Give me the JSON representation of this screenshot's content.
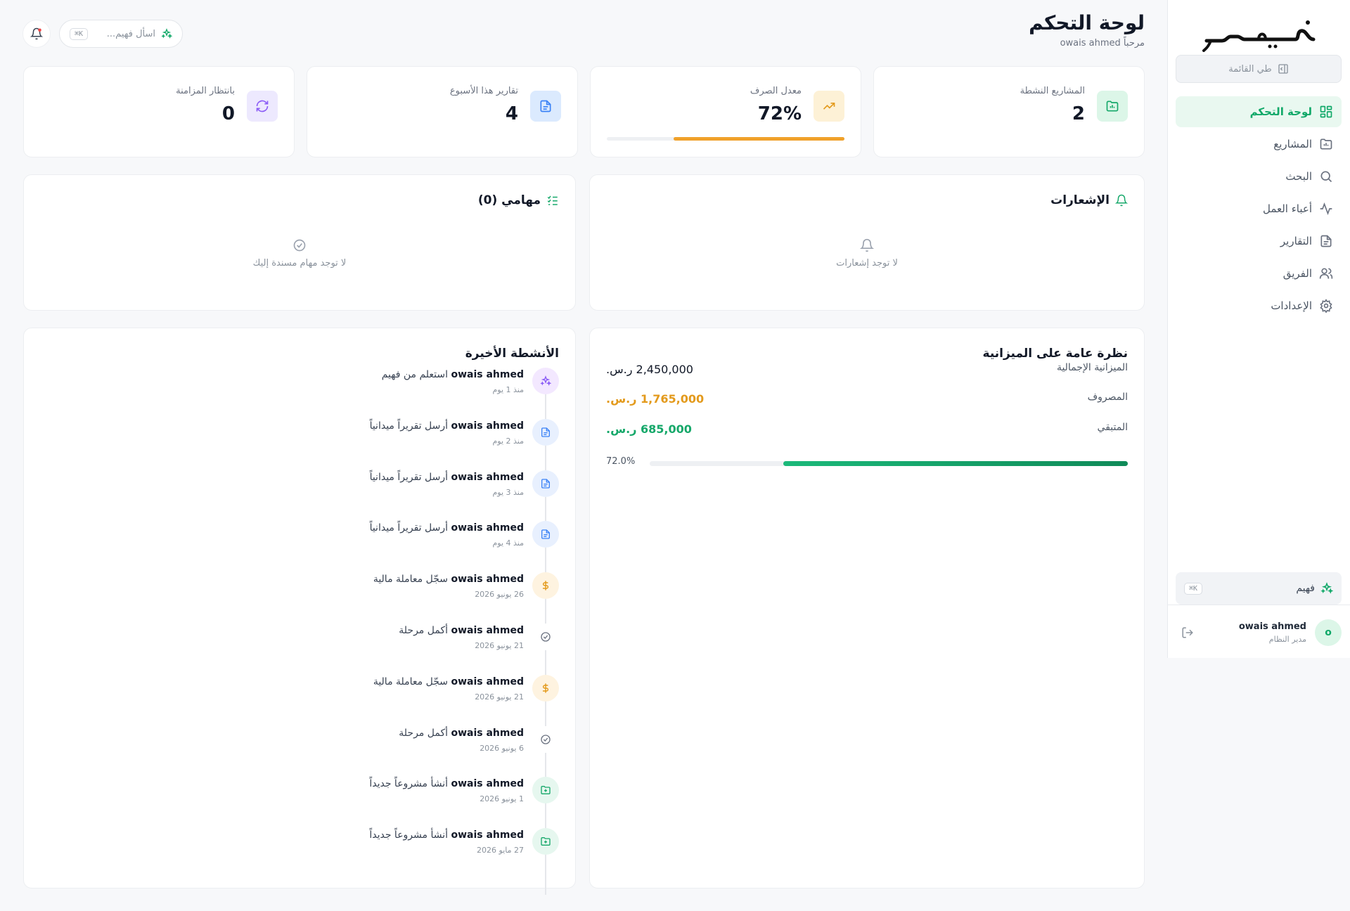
{
  "sidebar": {
    "collapse_label": "طي القائمة",
    "items": [
      {
        "label": "لوحة التحكم",
        "icon": "dashboard-icon",
        "active": true
      },
      {
        "label": "المشاريع",
        "icon": "folder-icon",
        "active": false
      },
      {
        "label": "البحث",
        "icon": "search-icon",
        "active": false
      },
      {
        "label": "أعباء العمل",
        "icon": "activity-icon",
        "active": false
      },
      {
        "label": "التقارير",
        "icon": "file-icon",
        "active": false
      },
      {
        "label": "الفريق",
        "icon": "users-icon",
        "active": false
      },
      {
        "label": "الإعدادات",
        "icon": "gear-icon",
        "active": false
      }
    ],
    "assistant_label": "فهيم",
    "assistant_shortcut": "⌘K",
    "user": {
      "initial": "o",
      "name": "owais ahmed",
      "role": "مدير النظام"
    }
  },
  "header": {
    "title": "لوحة التحكم",
    "welcome": "مرحباً owais ahmed",
    "ask_placeholder": "اسأل فهيم...",
    "ask_shortcut": "⌘K"
  },
  "stats": [
    {
      "label": "المشاريع النشطة",
      "value": "2",
      "icon": "folder-chart-icon",
      "color": "#16a86a"
    },
    {
      "label": "معدل الصرف",
      "value": "72%",
      "icon": "trending-up-icon",
      "color": "#e39a1c",
      "progress": 0.72
    },
    {
      "label": "تقارير هذا الأسبوع",
      "value": "4",
      "icon": "document-icon",
      "color": "#3b82f6"
    },
    {
      "label": "بانتظار المزامنة",
      "value": "0",
      "icon": "refresh-icon",
      "color": "#8b5cf6"
    }
  ],
  "notifications": {
    "title": "الإشعارات",
    "empty": "لا توجد إشعارات"
  },
  "tasks": {
    "title": "مهامي (0)",
    "empty": "لا توجد مهام مسندة إليك"
  },
  "budget": {
    "title": "نظرة عامة على الميزانية",
    "total_label": "الميزانية الإجمالية",
    "total_value": "2,450,000 ر.س.",
    "spent_label": "المصروف",
    "spent_value": "1,765,000 ر.س.",
    "remaining_label": "المتبقي",
    "remaining_value": "685,000 ر.س.",
    "percent_label": "72.0%",
    "progress": 0.72,
    "colors": {
      "spent": "#e39a1c",
      "remaining": "#16a86a"
    }
  },
  "activity": {
    "title": "الأنشطة الأخيرة",
    "items": [
      {
        "who": "owais ahmed",
        "action": "استعلم من فهيم",
        "time": "منذ 1 يوم",
        "icon": "sparkle-icon"
      },
      {
        "who": "owais ahmed",
        "action": "أرسل تقريراً ميدانياً",
        "time": "منذ 2 يوم",
        "icon": "document-icon"
      },
      {
        "who": "owais ahmed",
        "action": "أرسل تقريراً ميدانياً",
        "time": "منذ 3 يوم",
        "icon": "document-icon"
      },
      {
        "who": "owais ahmed",
        "action": "أرسل تقريراً ميدانياً",
        "time": "منذ 4 يوم",
        "icon": "document-icon"
      },
      {
        "who": "owais ahmed",
        "action": "سجّل معاملة مالية",
        "time": "26 يونيو 2026",
        "icon": "dollar-icon"
      },
      {
        "who": "owais ahmed",
        "action": "أكمل مرحلة",
        "time": "21 يونيو 2026",
        "icon": "check-circle-icon"
      },
      {
        "who": "owais ahmed",
        "action": "سجّل معاملة مالية",
        "time": "21 يونيو 2026",
        "icon": "dollar-icon"
      },
      {
        "who": "owais ahmed",
        "action": "أكمل مرحلة",
        "time": "6 يونيو 2026",
        "icon": "check-circle-icon"
      },
      {
        "who": "owais ahmed",
        "action": "أنشأ مشروعاً جديداً",
        "time": "1 يونيو 2026",
        "icon": "folder-plus-icon"
      },
      {
        "who": "owais ahmed",
        "action": "أنشأ مشروعاً جديداً",
        "time": "27 مايو 2026",
        "icon": "folder-plus-icon"
      }
    ]
  }
}
